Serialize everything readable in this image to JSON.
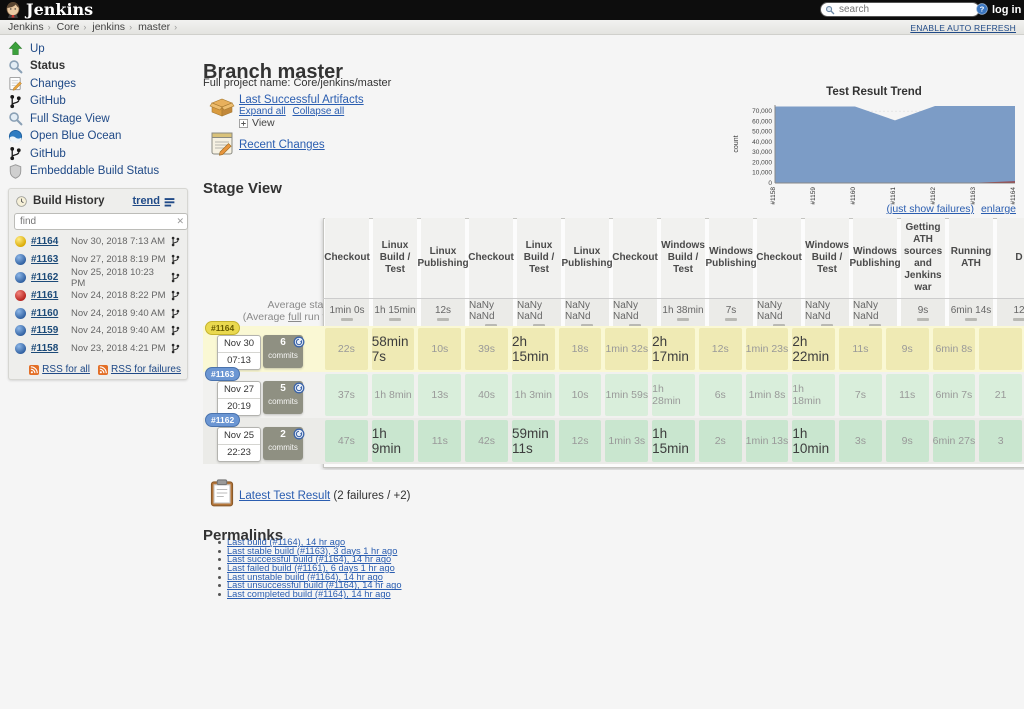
{
  "header": {
    "title": "Jenkins",
    "search_placeholder": "search",
    "login_label": "log in"
  },
  "breadcrumb": {
    "items": [
      "Jenkins",
      "Core",
      "jenkins",
      "master"
    ],
    "auto_refresh": "ENABLE AUTO REFRESH"
  },
  "sidebar": {
    "items": [
      {
        "icon": "up-arrow",
        "label": "Up",
        "current": false
      },
      {
        "icon": "magnifier",
        "label": "Status",
        "current": true
      },
      {
        "icon": "changes-doc",
        "label": "Changes",
        "current": false
      },
      {
        "icon": "github-fork",
        "label": "GitHub",
        "current": false
      },
      {
        "icon": "magnifier",
        "label": "Full Stage View",
        "current": false
      },
      {
        "icon": "blue-ocean",
        "label": "Open Blue Ocean",
        "current": false
      },
      {
        "icon": "github-fork",
        "label": "GitHub",
        "current": false
      },
      {
        "icon": "shield",
        "label": "Embeddable Build Status",
        "current": false
      }
    ]
  },
  "build_history": {
    "title": "Build History",
    "trend_label": "trend",
    "find_placeholder": "find",
    "builds": [
      {
        "id": "#1164",
        "date": "Nov 30, 2018 7:13 AM",
        "status": "yellow"
      },
      {
        "id": "#1163",
        "date": "Nov 27, 2018 8:19 PM",
        "status": "blue"
      },
      {
        "id": "#1162",
        "date": "Nov 25, 2018 10:23 PM",
        "status": "blue"
      },
      {
        "id": "#1161",
        "date": "Nov 24, 2018 8:22 PM",
        "status": "red"
      },
      {
        "id": "#1160",
        "date": "Nov 24, 2018 9:40 AM",
        "status": "blue"
      },
      {
        "id": "#1159",
        "date": "Nov 24, 2018 9:40 AM",
        "status": "blue"
      },
      {
        "id": "#1158",
        "date": "Nov 23, 2018 4:21 PM",
        "status": "blue"
      }
    ],
    "rss_all": "RSS for all",
    "rss_failures": "RSS for failures"
  },
  "main": {
    "page_title": "Branch master",
    "full_project_name": "Full project name: Core/jenkins/master",
    "artifacts": {
      "title": "Last Successful Artifacts",
      "expand": "Expand all",
      "collapse": "Collapse all",
      "view": "View"
    },
    "recent_changes": "Recent Changes",
    "chart_links": {
      "failures": "(just show failures)",
      "enlarge": "enlarge"
    },
    "stage_view": {
      "title": "Stage View",
      "avg_label": "Average stage times:",
      "avg_note_pre": "(Average ",
      "avg_note_link": "full",
      "avg_note_post": " run time: ~8h",
      "avg_note_line2": "2min)",
      "columns": [
        "Checkout",
        "Linux Build / Test",
        "Linux Publishing",
        "Checkout",
        "Linux Build / Test",
        "Linux Publishing",
        "Checkout",
        "Windows Build / Test",
        "Windows Publishing",
        "Checkout",
        "Windows Build / Test",
        "Windows Publishing",
        "Getting ATH sources and Jenkins war",
        "Running ATH",
        "D"
      ],
      "averages": [
        "1min 0s",
        "1h 15min",
        "12s",
        "NaNy NaNd",
        "NaNy NaNd",
        "NaNy NaNd",
        "NaNy NaNd",
        "1h 38min",
        "7s",
        "NaNy NaNd",
        "NaNy NaNd",
        "NaNy NaNd",
        "9s",
        "6min 14s",
        "12"
      ],
      "rows": [
        {
          "id": "#1164",
          "status": "yellow",
          "date": "Nov 30",
          "time": "07:13",
          "commits": "6",
          "commits_label": "commits",
          "cells": [
            {
              "v": "22s",
              "em": false
            },
            {
              "v": "58min 7s",
              "em": true
            },
            {
              "v": "10s",
              "em": false
            },
            {
              "v": "39s",
              "em": false
            },
            {
              "v": "2h 15min",
              "em": true
            },
            {
              "v": "18s",
              "em": false
            },
            {
              "v": "1min 32s",
              "em": false
            },
            {
              "v": "2h 17min",
              "em": true
            },
            {
              "v": "12s",
              "em": false
            },
            {
              "v": "1min 23s",
              "em": false
            },
            {
              "v": "2h 22min",
              "em": true
            },
            {
              "v": "11s",
              "em": false
            },
            {
              "v": "9s",
              "em": false
            },
            {
              "v": "6min 8s",
              "em": false
            },
            {
              "v": "",
              "em": false
            }
          ]
        },
        {
          "id": "#1163",
          "status": "blue",
          "date": "Nov 27",
          "time": "20:19",
          "commits": "5",
          "commits_label": "commits",
          "cells": [
            {
              "v": "37s",
              "em": false
            },
            {
              "v": "1h 8min",
              "em": false
            },
            {
              "v": "13s",
              "em": false
            },
            {
              "v": "40s",
              "em": false
            },
            {
              "v": "1h 3min",
              "em": false
            },
            {
              "v": "10s",
              "em": false
            },
            {
              "v": "1min 59s",
              "em": false
            },
            {
              "v": "1h 28min",
              "em": false
            },
            {
              "v": "6s",
              "em": false
            },
            {
              "v": "1min 8s",
              "em": false
            },
            {
              "v": "1h 18min",
              "em": false
            },
            {
              "v": "7s",
              "em": false
            },
            {
              "v": "11s",
              "em": false
            },
            {
              "v": "6min 7s",
              "em": false
            },
            {
              "v": "21",
              "em": false
            }
          ]
        },
        {
          "id": "#1162",
          "status": "blue2",
          "date": "Nov 25",
          "time": "22:23",
          "commits": "2",
          "commits_label": "commits",
          "cells": [
            {
              "v": "47s",
              "em": false
            },
            {
              "v": "1h 9min",
              "em": true
            },
            {
              "v": "11s",
              "em": false
            },
            {
              "v": "42s",
              "em": false
            },
            {
              "v": "59min 11s",
              "em": true
            },
            {
              "v": "12s",
              "em": false
            },
            {
              "v": "1min 3s",
              "em": false
            },
            {
              "v": "1h 15min",
              "em": true
            },
            {
              "v": "2s",
              "em": false
            },
            {
              "v": "1min 13s",
              "em": false
            },
            {
              "v": "1h 10min",
              "em": true
            },
            {
              "v": "3s",
              "em": false
            },
            {
              "v": "9s",
              "em": false
            },
            {
              "v": "6min 27s",
              "em": false
            },
            {
              "v": "3",
              "em": false
            }
          ]
        }
      ]
    },
    "test_result": {
      "link": "Latest Test Result",
      "suffix": " (2 failures / +2)"
    },
    "permalinks": {
      "title": "Permalinks",
      "items": [
        "Last build (#1164), 14 hr ago",
        "Last stable build (#1163), 3 days 1 hr ago",
        "Last successful build (#1164), 14 hr ago",
        "Last failed build (#1161), 6 days 1 hr ago",
        "Last unstable build (#1164), 14 hr ago",
        "Last unsuccessful build (#1164), 14 hr ago",
        "Last completed build (#1164), 14 hr ago"
      ]
    }
  },
  "chart_data": {
    "type": "area",
    "title": "Test Result Trend",
    "ylabel": "count",
    "x": [
      "#1158",
      "#1159",
      "#1160",
      "#1161",
      "#1162",
      "#1163",
      "#1164"
    ],
    "series": [
      {
        "name": "passed",
        "color": "#7c9cc6",
        "values": [
          74500,
          74500,
          74500,
          61000,
          75000,
          75000,
          75000
        ]
      },
      {
        "name": "failed",
        "color": "#9e2a2b",
        "values": [
          0,
          0,
          0,
          0,
          0,
          400,
          1600
        ]
      }
    ],
    "ylim": [
      0,
      76000
    ],
    "yticks": [
      0,
      10000,
      20000,
      30000,
      40000,
      50000,
      60000,
      70000
    ],
    "grid": true,
    "legend": "none"
  },
  "colors": {
    "link": "#2a5db0",
    "sidebar_link": "#204a87",
    "topbar": "#0d0d0d",
    "row_unstable_band": "#faf8d4",
    "row_unstable_cell": "#efeab4",
    "row_success_band": "#f1f1ef",
    "row_success_cell": "#d9eedb",
    "row_success2_band": "#ebebe8",
    "row_success2_cell": "#c9e6cf",
    "ball_yellow": "#d9a800",
    "ball_blue": "#2d5d9e",
    "ball_red": "#b5211c"
  }
}
